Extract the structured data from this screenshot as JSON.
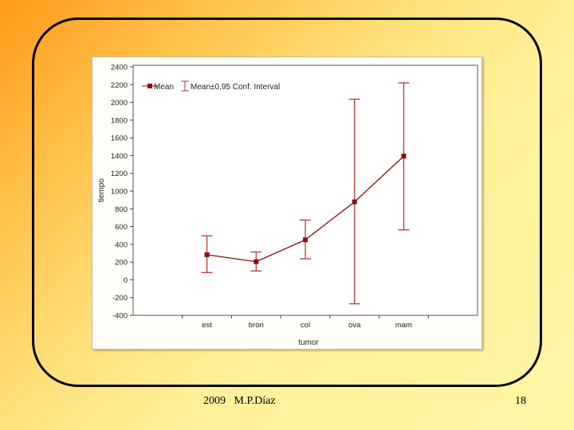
{
  "colors": {
    "series": "#8b1010",
    "errorbar": "#b03a3a",
    "axis": "#444444",
    "text": "#222222"
  },
  "chart_data": {
    "type": "line",
    "title": "",
    "xlabel": "tumor",
    "ylabel": "tiempo",
    "categories": [
      "est",
      "bron",
      "col",
      "ova",
      "mam"
    ],
    "ylim": [
      -400,
      2400
    ],
    "yticks": [
      2400,
      2200,
      2000,
      1800,
      1600,
      1400,
      1200,
      1000,
      800,
      600,
      400,
      200,
      0,
      -200,
      -400
    ],
    "grid": false,
    "legend_position": "top-left",
    "legend": {
      "mean_label": "Mean",
      "interval_label": "Mean±0,95 Conf. Interval"
    },
    "series": [
      {
        "mean": [
          283,
          205,
          451,
          879,
          1394
        ],
        "ci_low": [
          82,
          100,
          237,
          -270,
          563
        ],
        "ci_high": [
          496,
          314,
          674,
          2036,
          2220
        ]
      }
    ]
  },
  "footer": {
    "left": "2009   M.P.Díaz",
    "page_number": "18"
  }
}
